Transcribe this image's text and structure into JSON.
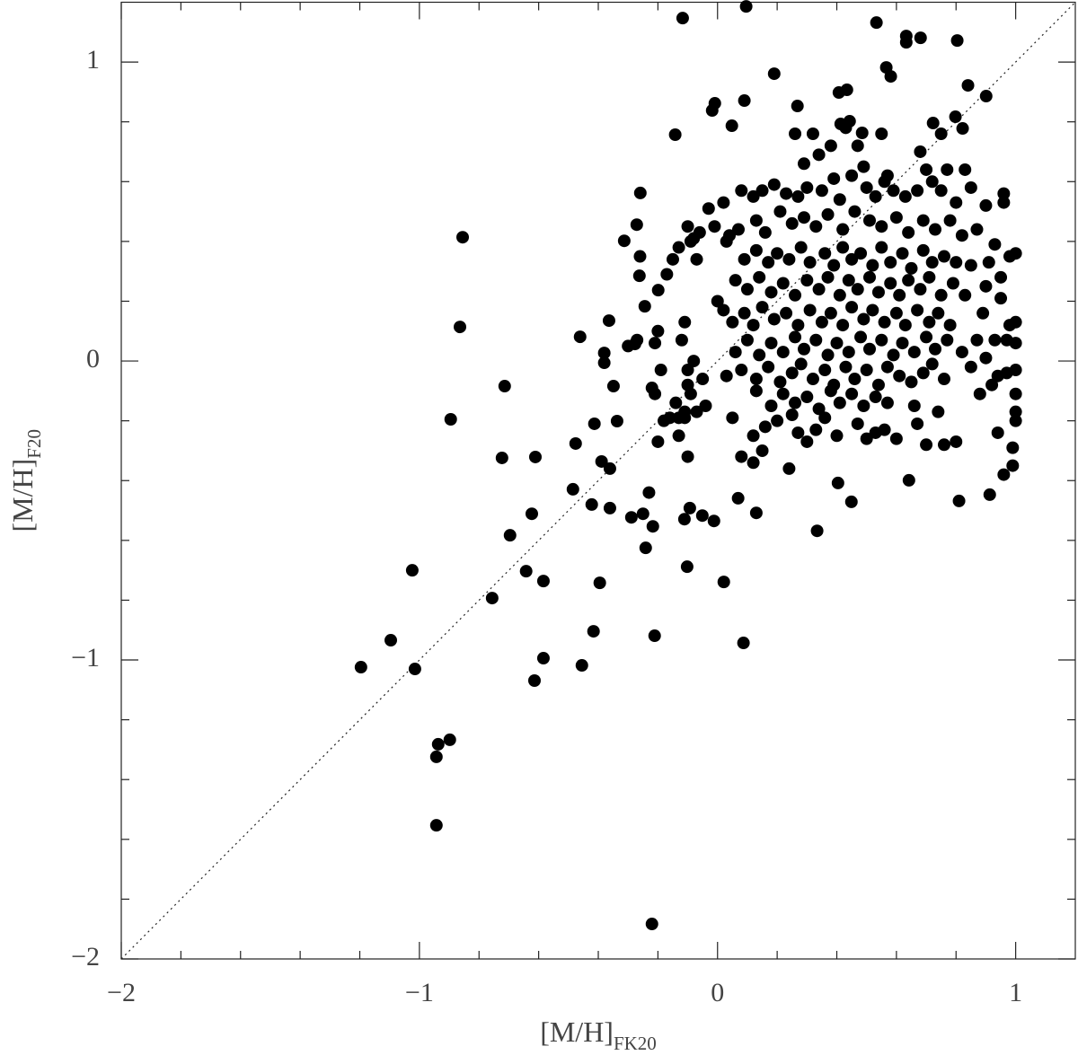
{
  "chart_data": {
    "type": "scatter",
    "xlabel": "[M/H]",
    "xlabel_sub": "FK20",
    "ylabel": "[M/H]",
    "ylabel_sub": "F20",
    "xlim": [
      -2,
      1.2
    ],
    "ylim": [
      -2,
      1.2
    ],
    "xticks": [
      {
        "value": -2,
        "label": "−2"
      },
      {
        "value": -1,
        "label": "−1"
      },
      0,
      1
    ],
    "yticks": [
      {
        "value": -2,
        "label": "−2"
      },
      {
        "value": -1,
        "label": "−1"
      },
      0,
      1
    ],
    "xminorticks": [
      -1.8,
      -1.6,
      -1.4,
      -1.2,
      -0.8,
      -0.6,
      -0.4,
      -0.2,
      0.2,
      0.4,
      0.6,
      0.8
    ],
    "yminorticks": [
      -1.8,
      -1.6,
      -1.4,
      -1.2,
      -0.8,
      -0.6,
      -0.4,
      -0.2,
      0.2,
      0.4,
      0.6,
      0.8
    ],
    "identity_line": true,
    "grid": false,
    "series": [
      {
        "color": "#000000",
        "x": [
          -0.117,
          0.096,
          0.533,
          0.633,
          0.633,
          0.681,
          0.804,
          0.19,
          0.566,
          0.581,
          0.84,
          0.901,
          0.407,
          0.434,
          -0.009,
          -0.018,
          0.09,
          -0.142,
          0.048,
          0.268,
          0.413,
          0.443,
          0.485,
          0.723,
          0.798,
          0.822,
          -0.259,
          -0.271,
          -0.313,
          -0.855,
          -0.864,
          -0.262,
          -0.199,
          -0.244,
          -0.364,
          -0.461,
          -0.277,
          -0.38,
          -0.38,
          -0.349,
          -0.895,
          -0.714,
          -0.723,
          -0.611,
          -0.476,
          -0.413,
          -0.337,
          -0.389,
          -0.361,
          -0.485,
          -0.422,
          -0.361,
          -0.289,
          -0.623,
          -0.696,
          -0.642,
          -0.584,
          -0.756,
          -0.395,
          -1.024,
          -1.096,
          -1.196,
          -1.015,
          -0.584,
          -0.455,
          -0.614,
          -0.416,
          -0.211,
          0.087,
          0.021,
          -0.102,
          -0.241,
          -0.217,
          -0.25,
          -0.111,
          -0.093,
          -0.051,
          -0.012,
          0.069,
          0.13,
          0.334,
          0.404,
          0.449,
          0.642,
          0.81,
          0.913,
          -0.937,
          -0.898,
          -0.943,
          -0.943,
          -0.22,
          -0.2,
          -0.21,
          -0.19,
          -0.11,
          -0.12,
          -0.08,
          -0.1,
          -0.1,
          -0.09,
          -0.07,
          -0.11,
          -0.14,
          -0.13,
          -0.16,
          -0.18,
          -0.21,
          -0.22,
          -0.13,
          -0.1,
          -0.2,
          -0.23,
          -0.11,
          -0.05,
          -0.04,
          -0.13,
          -0.09,
          -0.08,
          -0.07,
          -0.06,
          -0.03,
          -0.01,
          -0.1,
          -0.15,
          -0.17,
          -0.3,
          -0.27,
          -0.26,
          0.08,
          0.12,
          0.15,
          0.19,
          0.23,
          0.27,
          0.3,
          0.35,
          0.39,
          0.41,
          0.45,
          0.5,
          0.53,
          0.56,
          0.59,
          0.63,
          0.67,
          0.72,
          0.75,
          0.8,
          0.85,
          0.9,
          0.96,
          0.49,
          0.57,
          0.7,
          0.77,
          0.83,
          0.96,
          0.29,
          0.34,
          0.38,
          0.47,
          0.55,
          0.68,
          0.75,
          0.43,
          0.26,
          0.32,
          0.02,
          0.04,
          0.07,
          0.13,
          0.16,
          0.21,
          0.25,
          0.29,
          0.33,
          0.37,
          0.42,
          0.46,
          0.51,
          0.55,
          0.6,
          0.64,
          0.69,
          0.73,
          0.78,
          0.82,
          0.87,
          0.93,
          0.98,
          1.0,
          0.03,
          0.09,
          0.13,
          0.17,
          0.2,
          0.24,
          0.28,
          0.31,
          0.36,
          0.39,
          0.42,
          0.45,
          0.48,
          0.52,
          0.55,
          0.58,
          0.62,
          0.65,
          0.69,
          0.72,
          0.76,
          0.8,
          0.85,
          0.91,
          0.95,
          0.0,
          0.06,
          0.1,
          0.14,
          0.18,
          0.22,
          0.26,
          0.3,
          0.34,
          0.37,
          0.41,
          0.44,
          0.47,
          0.51,
          0.54,
          0.58,
          0.61,
          0.64,
          0.68,
          0.71,
          0.75,
          0.79,
          0.83,
          0.9,
          0.95,
          0.02,
          0.05,
          0.09,
          0.12,
          0.15,
          0.19,
          0.23,
          0.27,
          0.31,
          0.35,
          0.38,
          0.42,
          0.45,
          0.49,
          0.52,
          0.56,
          0.6,
          0.63,
          0.67,
          0.71,
          0.74,
          0.78,
          0.89,
          0.98,
          1.0,
          0.06,
          0.1,
          0.14,
          0.18,
          0.22,
          0.26,
          0.29,
          0.33,
          0.37,
          0.4,
          0.44,
          0.48,
          0.51,
          0.55,
          0.59,
          0.62,
          0.66,
          0.7,
          0.73,
          0.77,
          0.82,
          0.87,
          0.93,
          0.97,
          1.0,
          0.03,
          0.08,
          0.13,
          0.17,
          0.21,
          0.25,
          0.28,
          0.32,
          0.36,
          0.39,
          0.43,
          0.46,
          0.5,
          0.54,
          0.57,
          0.61,
          0.65,
          0.69,
          0.72,
          0.76,
          0.85,
          0.9,
          0.94,
          0.97,
          1.0,
          0.13,
          0.18,
          0.22,
          0.26,
          0.3,
          0.34,
          0.38,
          0.41,
          0.45,
          0.49,
          0.53,
          0.57,
          0.66,
          0.74,
          0.88,
          0.92,
          1.0,
          0.05,
          0.12,
          0.16,
          0.2,
          0.25,
          0.27,
          0.3,
          0.33,
          0.36,
          0.4,
          0.47,
          0.5,
          0.53,
          0.56,
          0.6,
          0.67,
          0.7,
          0.76,
          0.8,
          0.94,
          1.0,
          1.0,
          0.99,
          0.99,
          0.96,
          0.12,
          0.08,
          0.24,
          0.15
        ],
        "values": [
          1.147,
          1.186,
          1.132,
          1.087,
          1.066,
          1.081,
          1.072,
          0.961,
          0.982,
          0.952,
          0.922,
          0.886,
          0.898,
          0.907,
          0.862,
          0.838,
          0.871,
          0.757,
          0.787,
          0.853,
          0.793,
          0.802,
          0.763,
          0.796,
          0.817,
          0.778,
          0.562,
          0.456,
          0.402,
          0.414,
          0.114,
          0.285,
          0.237,
          0.183,
          0.135,
          0.081,
          0.057,
          0.027,
          -0.006,
          -0.084,
          -0.195,
          -0.084,
          -0.324,
          -0.321,
          -0.276,
          -0.21,
          -0.201,
          -0.336,
          -0.36,
          -0.429,
          -0.48,
          -0.492,
          -0.523,
          -0.511,
          -0.583,
          -0.703,
          -0.736,
          -0.793,
          -0.742,
          -0.7,
          -0.934,
          -1.024,
          -1.03,
          -0.994,
          -1.018,
          -1.069,
          -0.904,
          -0.919,
          -0.943,
          -0.739,
          -0.688,
          -0.625,
          -0.553,
          -0.511,
          -0.529,
          -0.492,
          -0.517,
          -0.535,
          -0.459,
          -0.508,
          -0.568,
          -0.408,
          -0.471,
          -0.399,
          -0.468,
          -0.447,
          -1.282,
          -1.267,
          -1.324,
          -1.553,
          -1.883,
          0.1,
          0.06,
          -0.03,
          0.13,
          0.07,
          0.0,
          -0.03,
          -0.08,
          -0.11,
          -0.17,
          -0.19,
          -0.14,
          -0.19,
          -0.19,
          -0.2,
          -0.11,
          -0.09,
          -0.25,
          -0.32,
          -0.27,
          -0.44,
          -0.17,
          -0.06,
          -0.15,
          0.38,
          0.4,
          0.41,
          0.34,
          0.43,
          0.51,
          0.45,
          0.45,
          0.34,
          0.29,
          0.05,
          0.07,
          0.35,
          0.57,
          0.55,
          0.57,
          0.59,
          0.56,
          0.55,
          0.58,
          0.57,
          0.61,
          0.54,
          0.62,
          0.58,
          0.55,
          0.6,
          0.57,
          0.55,
          0.57,
          0.6,
          0.57,
          0.53,
          0.58,
          0.52,
          0.53,
          0.65,
          0.62,
          0.64,
          0.64,
          0.64,
          0.56,
          0.66,
          0.69,
          0.72,
          0.72,
          0.76,
          0.7,
          0.76,
          0.78,
          0.76,
          0.76,
          0.53,
          0.42,
          0.44,
          0.47,
          0.43,
          0.5,
          0.46,
          0.48,
          0.45,
          0.49,
          0.44,
          0.5,
          0.47,
          0.45,
          0.48,
          0.43,
          0.47,
          0.44,
          0.47,
          0.42,
          0.44,
          0.39,
          0.35,
          0.36,
          0.4,
          0.34,
          0.37,
          0.33,
          0.36,
          0.34,
          0.38,
          0.33,
          0.36,
          0.32,
          0.38,
          0.34,
          0.36,
          0.32,
          0.38,
          0.33,
          0.36,
          0.31,
          0.37,
          0.33,
          0.35,
          0.33,
          0.32,
          0.33,
          0.28,
          0.2,
          0.27,
          0.24,
          0.28,
          0.23,
          0.26,
          0.22,
          0.27,
          0.24,
          0.28,
          0.22,
          0.27,
          0.24,
          0.28,
          0.23,
          0.26,
          0.22,
          0.27,
          0.24,
          0.28,
          0.22,
          0.26,
          0.22,
          0.25,
          0.21,
          0.17,
          0.13,
          0.16,
          0.12,
          0.18,
          0.14,
          0.16,
          0.12,
          0.17,
          0.13,
          0.16,
          0.12,
          0.18,
          0.14,
          0.17,
          0.13,
          0.16,
          0.12,
          0.17,
          0.13,
          0.16,
          0.12,
          0.16,
          0.12,
          0.13,
          0.03,
          0.07,
          0.02,
          0.06,
          0.03,
          0.08,
          0.04,
          0.07,
          0.02,
          0.06,
          0.03,
          0.08,
          0.04,
          0.07,
          0.02,
          0.06,
          0.03,
          0.08,
          0.04,
          0.07,
          0.03,
          0.07,
          0.07,
          0.07,
          0.06,
          -0.05,
          -0.03,
          -0.06,
          -0.02,
          -0.07,
          -0.04,
          -0.01,
          -0.06,
          -0.03,
          -0.08,
          -0.02,
          -0.06,
          -0.03,
          -0.08,
          -0.02,
          -0.05,
          -0.07,
          -0.04,
          -0.01,
          -0.06,
          -0.02,
          0.01,
          -0.05,
          -0.04,
          -0.03,
          -0.1,
          -0.15,
          -0.11,
          -0.14,
          -0.12,
          -0.16,
          -0.1,
          -0.14,
          -0.11,
          -0.15,
          -0.12,
          -0.14,
          -0.15,
          -0.17,
          -0.11,
          -0.08,
          -0.11,
          -0.19,
          -0.25,
          -0.22,
          -0.2,
          -0.18,
          -0.24,
          -0.27,
          -0.23,
          -0.19,
          -0.25,
          -0.21,
          -0.26,
          -0.24,
          -0.23,
          -0.26,
          -0.21,
          -0.28,
          -0.28,
          -0.27,
          -0.24,
          -0.17,
          -0.2,
          -0.29,
          -0.35,
          -0.38,
          -0.34,
          -0.32,
          -0.36,
          -0.3
        ]
      }
    ]
  }
}
